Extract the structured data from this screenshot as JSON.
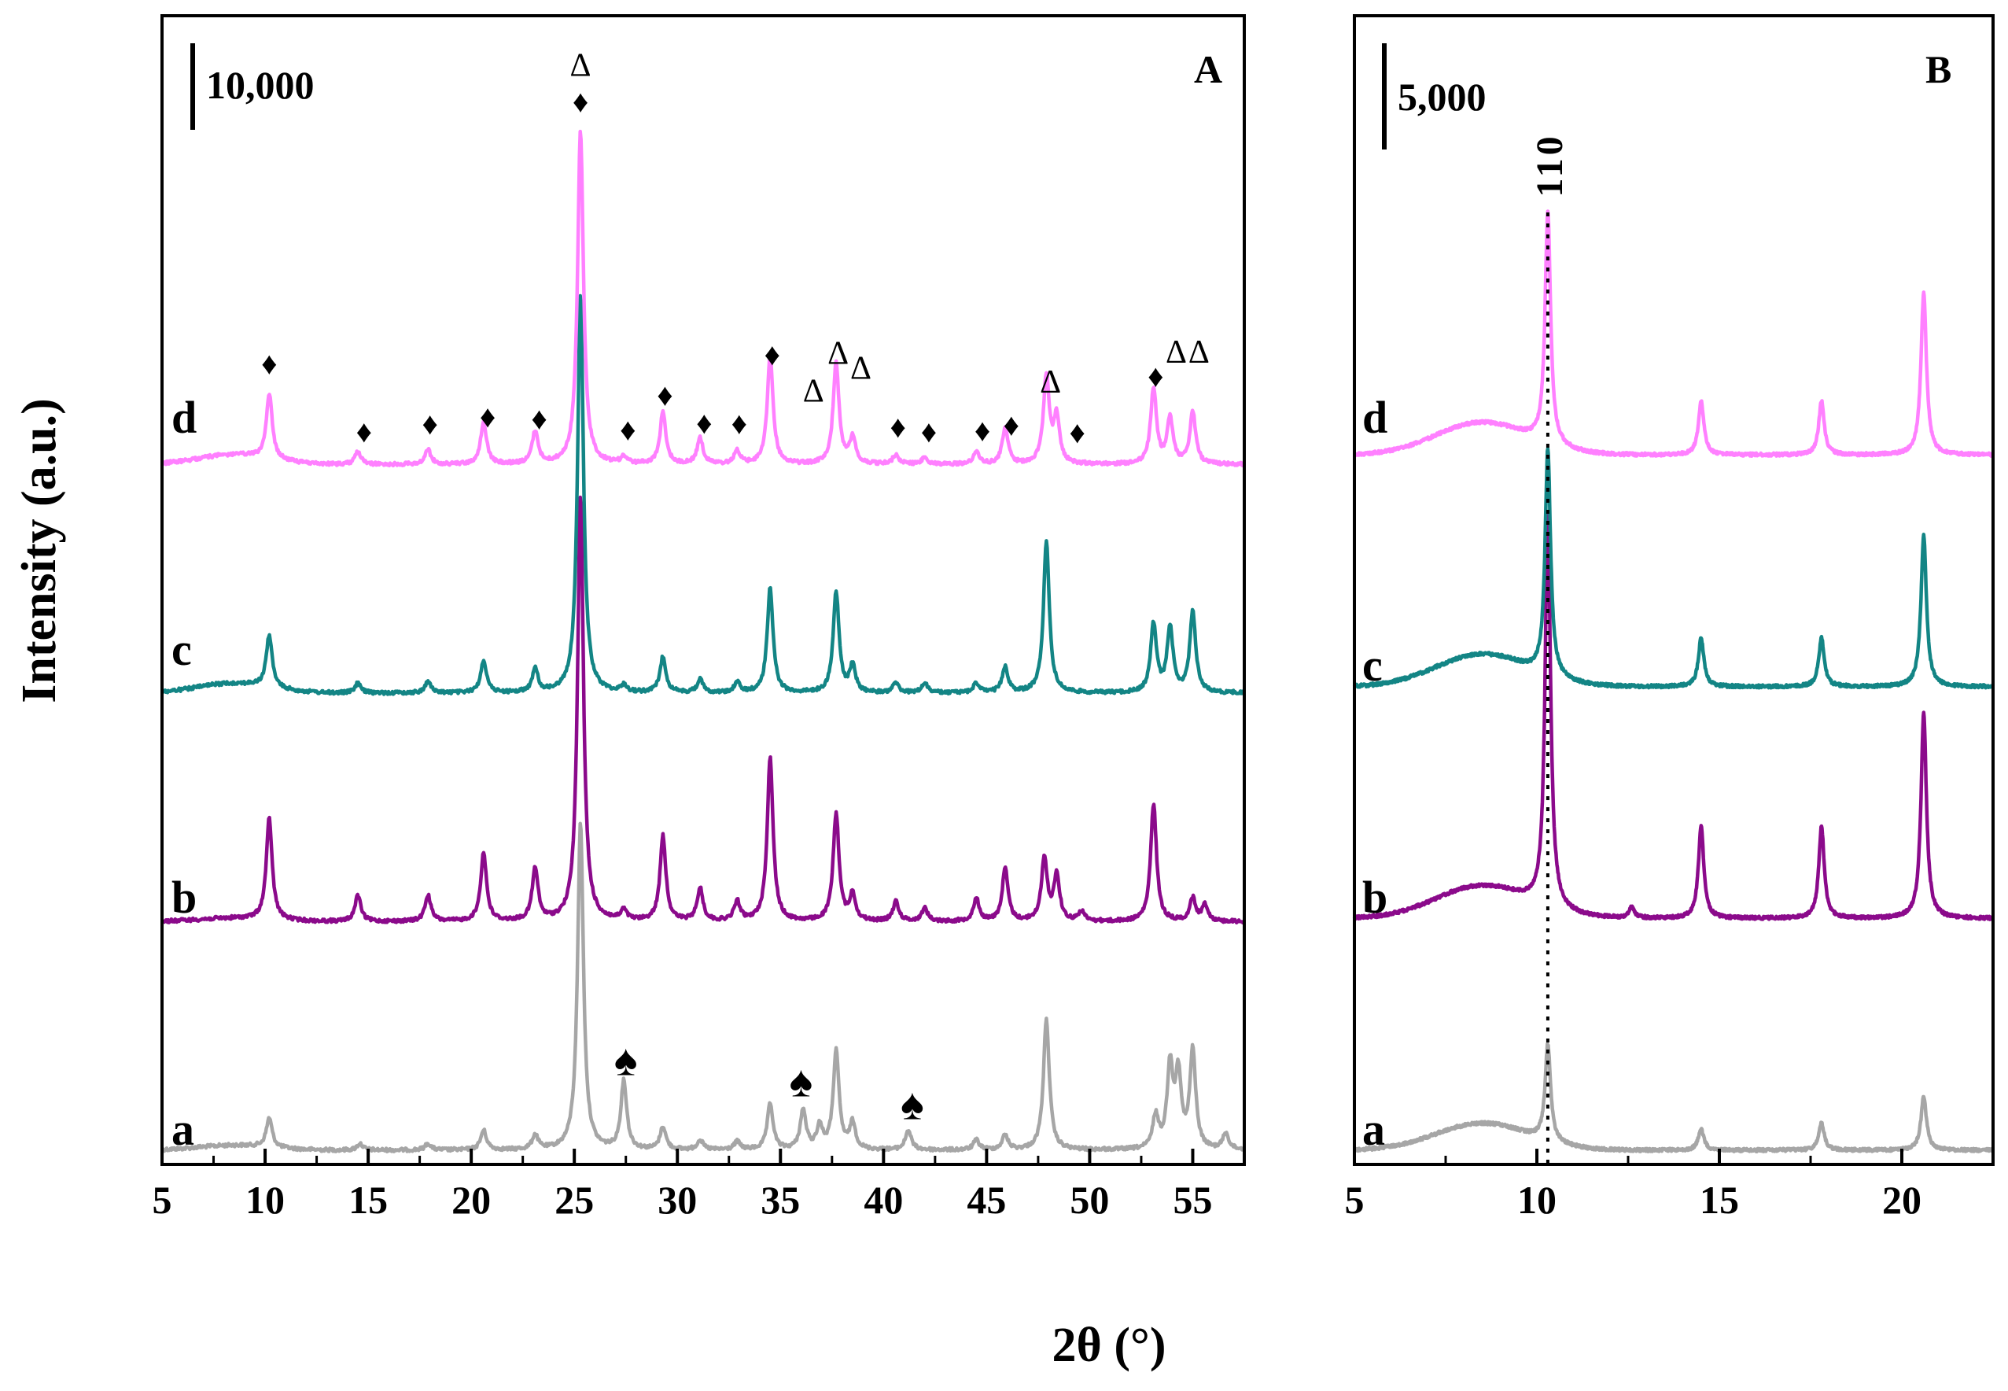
{
  "chart_data": [
    {
      "panel": "A",
      "type": "line",
      "xlim": [
        5,
        57.5
      ],
      "xticks": [
        5,
        10,
        15,
        20,
        25,
        30,
        35,
        40,
        45,
        50,
        55
      ],
      "scale_bar_label": "10,000",
      "series": [
        {
          "name": "a",
          "color": "#a6a6a6",
          "baseline": 0,
          "peaks": [
            [
              10.2,
              0.9
            ],
            [
              14.6,
              0.2
            ],
            [
              17.9,
              0.2
            ],
            [
              20.6,
              0.6
            ],
            [
              23.1,
              0.45
            ],
            [
              25.3,
              10.0
            ],
            [
              27.4,
              2.1
            ],
            [
              29.3,
              0.7
            ],
            [
              31.1,
              0.3
            ],
            [
              32.9,
              0.25
            ],
            [
              34.5,
              1.4
            ],
            [
              36.1,
              1.2
            ],
            [
              36.9,
              0.7
            ],
            [
              37.7,
              3.0
            ],
            [
              38.5,
              0.8
            ],
            [
              41.2,
              0.6
            ],
            [
              44.5,
              0.3
            ],
            [
              45.9,
              0.45
            ],
            [
              47.9,
              4.0
            ],
            [
              53.2,
              1.0
            ],
            [
              53.9,
              2.5
            ],
            [
              54.3,
              2.2
            ],
            [
              55.0,
              3.0
            ],
            [
              56.6,
              0.5
            ]
          ],
          "broad": [
            [
              8.5,
              0.15,
              2.5
            ]
          ]
        },
        {
          "name": "b",
          "color": "#8b0a8b",
          "baseline": 7,
          "peaks": [
            [
              10.2,
              3.1
            ],
            [
              14.5,
              0.8
            ],
            [
              17.9,
              0.8
            ],
            [
              20.6,
              2.1
            ],
            [
              23.1,
              1.6
            ],
            [
              25.3,
              13.0
            ],
            [
              27.4,
              0.3
            ],
            [
              29.3,
              2.6
            ],
            [
              31.1,
              1.0
            ],
            [
              32.9,
              0.6
            ],
            [
              34.5,
              5.0
            ],
            [
              37.7,
              3.3
            ],
            [
              38.5,
              0.8
            ],
            [
              40.6,
              0.6
            ],
            [
              42.0,
              0.4
            ],
            [
              44.5,
              0.7
            ],
            [
              45.9,
              1.6
            ],
            [
              47.8,
              1.9
            ],
            [
              48.4,
              1.4
            ],
            [
              49.6,
              0.3
            ],
            [
              53.1,
              3.6
            ],
            [
              55.0,
              0.7
            ],
            [
              55.6,
              0.5
            ]
          ],
          "broad": [
            [
              8.5,
              0.1,
              2.5
            ]
          ]
        },
        {
          "name": "c",
          "color": "#138585",
          "baseline": 14,
          "peaks": [
            [
              10.2,
              1.6
            ],
            [
              14.5,
              0.3
            ],
            [
              17.9,
              0.35
            ],
            [
              20.6,
              1.0
            ],
            [
              23.1,
              0.7
            ],
            [
              25.3,
              12.2
            ],
            [
              27.4,
              0.2
            ],
            [
              29.3,
              1.1
            ],
            [
              31.1,
              0.4
            ],
            [
              32.9,
              0.3
            ],
            [
              34.5,
              3.2
            ],
            [
              37.7,
              3.1
            ],
            [
              38.5,
              0.8
            ],
            [
              40.6,
              0.3
            ],
            [
              42.0,
              0.3
            ],
            [
              44.5,
              0.3
            ],
            [
              45.9,
              0.8
            ],
            [
              47.9,
              4.6
            ],
            [
              53.1,
              2.1
            ],
            [
              53.9,
              2.0
            ],
            [
              55.0,
              2.5
            ]
          ],
          "broad": [
            [
              8.5,
              0.3,
              2.5
            ]
          ]
        },
        {
          "name": "d",
          "color": "#ff80ff",
          "baseline": 21,
          "peaks": [
            [
              10.2,
              2.0
            ],
            [
              14.5,
              0.4
            ],
            [
              17.9,
              0.45
            ],
            [
              20.6,
              1.3
            ],
            [
              23.1,
              1.0
            ],
            [
              25.3,
              10.2
            ],
            [
              27.4,
              0.2
            ],
            [
              29.3,
              1.6
            ],
            [
              31.1,
              0.8
            ],
            [
              32.9,
              0.4
            ],
            [
              34.5,
              3.3
            ],
            [
              37.7,
              3.1
            ],
            [
              38.5,
              0.8
            ],
            [
              40.6,
              0.3
            ],
            [
              42.0,
              0.2
            ],
            [
              44.5,
              0.4
            ],
            [
              45.9,
              1.1
            ],
            [
              47.9,
              2.7
            ],
            [
              48.4,
              1.4
            ],
            [
              53.1,
              2.3
            ],
            [
              53.9,
              1.4
            ],
            [
              55.0,
              1.6
            ]
          ],
          "broad": [
            [
              8.5,
              0.3,
              2.5
            ]
          ]
        }
      ],
      "markers": [
        {
          "symbol": "♦",
          "x": 10.2,
          "series": "d",
          "kind": "diamond"
        },
        {
          "symbol": "♦",
          "x": 14.8,
          "series": "d",
          "kind": "diamond"
        },
        {
          "symbol": "♦",
          "x": 18.0,
          "series": "d",
          "kind": "diamond"
        },
        {
          "symbol": "♦",
          "x": 20.8,
          "series": "d",
          "kind": "diamond"
        },
        {
          "symbol": "♦",
          "x": 23.3,
          "series": "d",
          "kind": "diamond"
        },
        {
          "symbol": "♦",
          "x": 25.3,
          "series": "d",
          "kind": "diamond"
        },
        {
          "symbol": "Δ",
          "x": 25.3,
          "series": "d",
          "kind": "delta"
        },
        {
          "symbol": "♦",
          "x": 27.6,
          "series": "d",
          "kind": "diamond"
        },
        {
          "symbol": "♦",
          "x": 29.4,
          "series": "d",
          "kind": "diamond"
        },
        {
          "symbol": "♦",
          "x": 31.3,
          "series": "d",
          "kind": "diamond"
        },
        {
          "symbol": "♦",
          "x": 33.0,
          "series": "d",
          "kind": "diamond"
        },
        {
          "symbol": "♦",
          "x": 34.6,
          "series": "d",
          "kind": "diamond"
        },
        {
          "symbol": "Δ",
          "x": 36.6,
          "series": "d",
          "kind": "delta"
        },
        {
          "symbol": "Δ",
          "x": 37.8,
          "series": "d",
          "kind": "delta"
        },
        {
          "symbol": "Δ",
          "x": 38.9,
          "series": "d",
          "kind": "delta"
        },
        {
          "symbol": "♦",
          "x": 40.7,
          "series": "d",
          "kind": "diamond"
        },
        {
          "symbol": "♦",
          "x": 42.2,
          "series": "d",
          "kind": "diamond"
        },
        {
          "symbol": "♦",
          "x": 44.8,
          "series": "d",
          "kind": "diamond"
        },
        {
          "symbol": "♦",
          "x": 46.2,
          "series": "d",
          "kind": "diamond"
        },
        {
          "symbol": "Δ",
          "x": 48.1,
          "series": "d",
          "kind": "delta"
        },
        {
          "symbol": "♦",
          "x": 49.4,
          "series": "d",
          "kind": "diamond"
        },
        {
          "symbol": "♦",
          "x": 53.2,
          "series": "d",
          "kind": "diamond"
        },
        {
          "symbol": "Δ",
          "x": 54.2,
          "series": "d",
          "kind": "delta"
        },
        {
          "symbol": "Δ",
          "x": 55.3,
          "series": "d",
          "kind": "delta"
        },
        {
          "symbol": "♠",
          "x": 27.5,
          "series": "a",
          "kind": "spade"
        },
        {
          "symbol": "♠",
          "x": 36.0,
          "series": "a",
          "kind": "spade"
        },
        {
          "symbol": "♠",
          "x": 41.4,
          "series": "a",
          "kind": "spade"
        }
      ]
    },
    {
      "panel": "B",
      "type": "line",
      "xlim": [
        5,
        22.5
      ],
      "xticks": [
        5,
        10,
        15,
        20
      ],
      "scale_bar_label": "5,000",
      "reference_line": {
        "x": 10.3,
        "label": "110"
      },
      "series": [
        {
          "name": "a",
          "color": "#a6a6a6",
          "baseline": 0,
          "peaks": [
            [
              10.3,
              1.8
            ],
            [
              14.5,
              0.4
            ],
            [
              17.8,
              0.5
            ],
            [
              20.6,
              1.0
            ]
          ],
          "broad": [
            [
              8.5,
              0.5,
              1.8
            ]
          ]
        },
        {
          "name": "b",
          "color": "#8b0a8b",
          "baseline": 4.3,
          "peaks": [
            [
              10.3,
              7.3
            ],
            [
              12.6,
              0.2
            ],
            [
              14.5,
              1.7
            ],
            [
              17.8,
              1.7
            ],
            [
              20.6,
              3.8
            ]
          ],
          "broad": [
            [
              8.5,
              0.6,
              1.8
            ]
          ]
        },
        {
          "name": "c",
          "color": "#138585",
          "baseline": 8.6,
          "peaks": [
            [
              10.3,
              4.2
            ],
            [
              14.5,
              0.9
            ],
            [
              17.8,
              0.9
            ],
            [
              20.6,
              2.8
            ]
          ],
          "broad": [
            [
              8.5,
              0.6,
              1.8
            ]
          ]
        },
        {
          "name": "d",
          "color": "#ff80ff",
          "baseline": 12.9,
          "peaks": [
            [
              10.3,
              4.3
            ],
            [
              14.5,
              1.0
            ],
            [
              17.8,
              1.0
            ],
            [
              20.6,
              3.0
            ]
          ],
          "broad": [
            [
              8.5,
              0.6,
              1.8
            ]
          ]
        }
      ]
    }
  ],
  "labels": {
    "ylabel": "Intensity (a.u.)",
    "xlabel": "2θ (°)",
    "panel_a": "A",
    "panel_b": "B",
    "scale_a": "10,000",
    "scale_b": "5,000",
    "miller": "110",
    "curve_a": "a",
    "curve_b": "b",
    "curve_c": "c",
    "curve_d": "d"
  }
}
